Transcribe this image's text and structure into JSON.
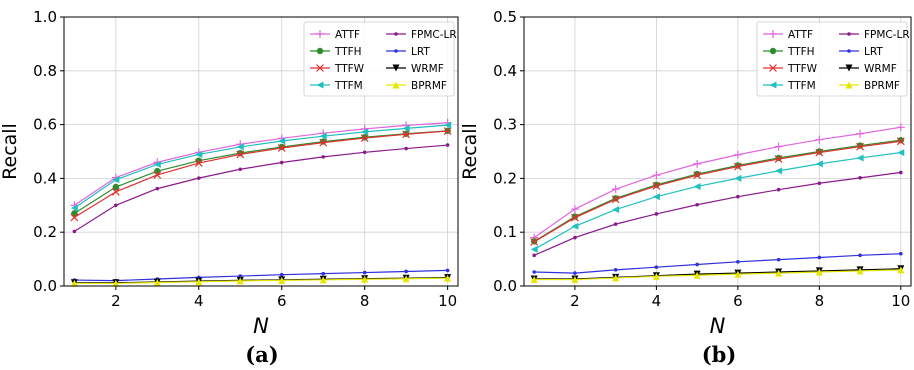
{
  "chart_data": [
    {
      "type": "line",
      "caption": "(a)",
      "xlabel": "N",
      "ylabel": "Recall",
      "xlim": [
        0.75,
        10.25
      ],
      "ylim": [
        0.0,
        1.0
      ],
      "xticks": [
        2,
        4,
        6,
        8,
        10
      ],
      "yticks": [
        "0.0",
        "0.2",
        "0.4",
        "0.6",
        "0.8",
        "1.0"
      ],
      "grid": true,
      "legend_position": "top-right",
      "x": [
        1,
        2,
        3,
        4,
        5,
        6,
        7,
        8,
        9,
        10
      ],
      "series": [
        {
          "name": "ATTF",
          "color": "#e066e0",
          "marker": "plus",
          "values": [
            0.3,
            0.403,
            0.46,
            0.497,
            0.527,
            0.549,
            0.568,
            0.584,
            0.597,
            0.607
          ]
        },
        {
          "name": "TTFH",
          "color": "#2e8b2e",
          "marker": "circle",
          "values": [
            0.27,
            0.368,
            0.427,
            0.466,
            0.494,
            0.517,
            0.537,
            0.553,
            0.566,
            0.577
          ]
        },
        {
          "name": "TTFW",
          "color": "#e03030",
          "marker": "x",
          "values": [
            0.255,
            0.35,
            0.413,
            0.457,
            0.489,
            0.513,
            0.533,
            0.55,
            0.564,
            0.576
          ]
        },
        {
          "name": "TTFM",
          "color": "#20c0c0",
          "marker": "triangle-left",
          "values": [
            0.29,
            0.395,
            0.452,
            0.489,
            0.517,
            0.539,
            0.557,
            0.573,
            0.586,
            0.598
          ]
        },
        {
          "name": "FPMC-LR",
          "color": "#8b1a8b",
          "marker": "dot",
          "values": [
            0.203,
            0.3,
            0.362,
            0.401,
            0.434,
            0.459,
            0.48,
            0.497,
            0.511,
            0.524
          ]
        },
        {
          "name": "LRT",
          "color": "#3030e0",
          "marker": "dot",
          "values": [
            0.022,
            0.02,
            0.026,
            0.032,
            0.037,
            0.042,
            0.046,
            0.05,
            0.054,
            0.058
          ]
        },
        {
          "name": "WRMF",
          "color": "#000000",
          "marker": "triangle-down",
          "values": [
            0.012,
            0.012,
            0.015,
            0.018,
            0.021,
            0.023,
            0.025,
            0.027,
            0.029,
            0.031
          ]
        },
        {
          "name": "BPRMF",
          "color": "#e6e600",
          "marker": "triangle-up",
          "values": [
            0.01,
            0.01,
            0.013,
            0.016,
            0.019,
            0.021,
            0.023,
            0.025,
            0.027,
            0.029
          ]
        }
      ]
    },
    {
      "type": "line",
      "caption": "(b)",
      "xlabel": "N",
      "ylabel": "Recall",
      "xlim": [
        0.75,
        10.25
      ],
      "ylim": [
        0.0,
        0.5
      ],
      "xticks": [
        2,
        4,
        6,
        8,
        10
      ],
      "yticks": [
        "0.0",
        "0.1",
        "0.2",
        "0.3",
        "0.4",
        "0.5"
      ],
      "grid": true,
      "legend_position": "top-right",
      "x": [
        1,
        2,
        3,
        4,
        5,
        6,
        7,
        8,
        9,
        10
      ],
      "series": [
        {
          "name": "ATTF",
          "color": "#e066e0",
          "marker": "plus",
          "values": [
            0.09,
            0.143,
            0.18,
            0.206,
            0.227,
            0.244,
            0.259,
            0.272,
            0.283,
            0.295
          ]
        },
        {
          "name": "TTFH",
          "color": "#2e8b2e",
          "marker": "circle",
          "values": [
            0.083,
            0.129,
            0.163,
            0.188,
            0.208,
            0.224,
            0.238,
            0.25,
            0.261,
            0.271
          ]
        },
        {
          "name": "TTFW",
          "color": "#e03030",
          "marker": "x",
          "values": [
            0.082,
            0.127,
            0.161,
            0.186,
            0.206,
            0.222,
            0.236,
            0.248,
            0.259,
            0.269
          ]
        },
        {
          "name": "TTFM",
          "color": "#20c0c0",
          "marker": "triangle-left",
          "values": [
            0.068,
            0.111,
            0.142,
            0.166,
            0.185,
            0.2,
            0.214,
            0.227,
            0.238,
            0.248
          ]
        },
        {
          "name": "FPMC-LR",
          "color": "#8b1a8b",
          "marker": "dot",
          "values": [
            0.057,
            0.09,
            0.115,
            0.134,
            0.151,
            0.166,
            0.179,
            0.191,
            0.201,
            0.211
          ]
        },
        {
          "name": "LRT",
          "color": "#3030e0",
          "marker": "dot",
          "values": [
            0.026,
            0.024,
            0.03,
            0.035,
            0.04,
            0.045,
            0.049,
            0.053,
            0.057,
            0.06
          ]
        },
        {
          "name": "WRMF",
          "color": "#000000",
          "marker": "triangle-down",
          "values": [
            0.013,
            0.013,
            0.016,
            0.019,
            0.022,
            0.024,
            0.026,
            0.028,
            0.03,
            0.032
          ]
        },
        {
          "name": "BPRMF",
          "color": "#e6e600",
          "marker": "triangle-up",
          "values": [
            0.012,
            0.012,
            0.015,
            0.018,
            0.02,
            0.022,
            0.024,
            0.026,
            0.028,
            0.03
          ]
        }
      ]
    }
  ]
}
